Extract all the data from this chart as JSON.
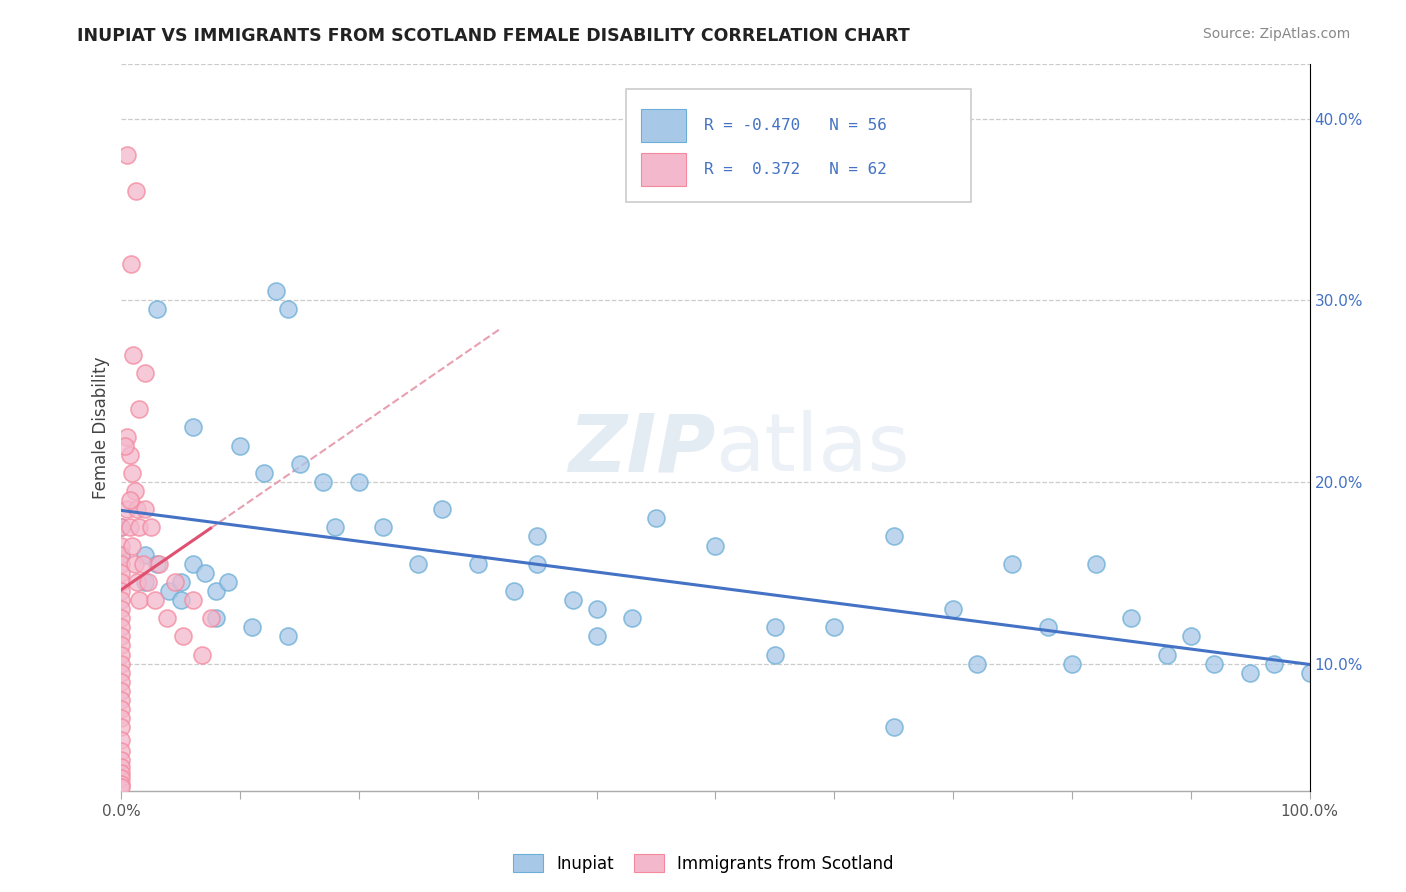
{
  "title": "INUPIAT VS IMMIGRANTS FROM SCOTLAND FEMALE DISABILITY CORRELATION CHART",
  "source": "Source: ZipAtlas.com",
  "ylabel": "Female Disability",
  "watermark": "ZIPatlas",
  "xlim": [
    0,
    1.0
  ],
  "ylim": [
    0.03,
    0.43
  ],
  "xtick_positions": [
    0.0,
    0.1,
    0.2,
    0.3,
    0.4,
    0.5,
    0.6,
    0.7,
    0.8,
    0.9,
    1.0
  ],
  "xticklabels_edge": {
    "0.0": "0.0%",
    "1.0": "100.0%"
  },
  "yticks": [
    0.1,
    0.2,
    0.3,
    0.4
  ],
  "yticklabels": [
    "10.0%",
    "20.0%",
    "30.0%",
    "40.0%"
  ],
  "legend_blue_R": "-0.470",
  "legend_blue_N": "56",
  "legend_pink_R": "0.372",
  "legend_pink_N": "62",
  "blue_color": "#a8c8e8",
  "pink_color": "#f4b8cc",
  "blue_edge_color": "#6baed6",
  "pink_edge_color": "#f4889e",
  "blue_line_color": "#4472c4",
  "pink_line_color": "#e05070",
  "pink_dash_color": "#e8a0b0",
  "inupiat_label": "Inupiat",
  "scotland_label": "Immigrants from Scotland",
  "blue_scatter_x": [
    0.0,
    0.0,
    0.02,
    0.03,
    0.04,
    0.05,
    0.06,
    0.07,
    0.08,
    0.09,
    0.1,
    0.12,
    0.13,
    0.14,
    0.15,
    0.17,
    0.18,
    0.2,
    0.22,
    0.25,
    0.27,
    0.3,
    0.33,
    0.35,
    0.38,
    0.4,
    0.43,
    0.45,
    0.5,
    0.55,
    0.6,
    0.65,
    0.7,
    0.72,
    0.75,
    0.78,
    0.8,
    0.82,
    0.85,
    0.88,
    0.9,
    0.92,
    0.95,
    0.97,
    1.0,
    0.02,
    0.05,
    0.08,
    0.11,
    0.14,
    0.03,
    0.06,
    0.35,
    0.4,
    0.55,
    0.65
  ],
  "blue_scatter_y": [
    0.175,
    0.16,
    0.16,
    0.155,
    0.14,
    0.145,
    0.155,
    0.15,
    0.14,
    0.145,
    0.22,
    0.205,
    0.305,
    0.295,
    0.21,
    0.2,
    0.175,
    0.2,
    0.175,
    0.155,
    0.185,
    0.155,
    0.14,
    0.17,
    0.135,
    0.13,
    0.125,
    0.18,
    0.165,
    0.12,
    0.12,
    0.17,
    0.13,
    0.1,
    0.155,
    0.12,
    0.1,
    0.155,
    0.125,
    0.105,
    0.115,
    0.1,
    0.095,
    0.1,
    0.095,
    0.145,
    0.135,
    0.125,
    0.12,
    0.115,
    0.295,
    0.23,
    0.155,
    0.115,
    0.105,
    0.065
  ],
  "pink_scatter_x": [
    0.0,
    0.0,
    0.0,
    0.0,
    0.0,
    0.0,
    0.0,
    0.0,
    0.0,
    0.0,
    0.0,
    0.0,
    0.0,
    0.0,
    0.0,
    0.0,
    0.0,
    0.0,
    0.0,
    0.0,
    0.0,
    0.0,
    0.0,
    0.0,
    0.0,
    0.0,
    0.0,
    0.0,
    0.0,
    0.0,
    0.005,
    0.005,
    0.007,
    0.007,
    0.009,
    0.009,
    0.011,
    0.011,
    0.013,
    0.013,
    0.015,
    0.015,
    0.018,
    0.02,
    0.022,
    0.025,
    0.028,
    0.032,
    0.038,
    0.045,
    0.052,
    0.06,
    0.068,
    0.075,
    0.015,
    0.02,
    0.008,
    0.012,
    0.005,
    0.01,
    0.003,
    0.007
  ],
  "pink_scatter_y": [
    0.175,
    0.165,
    0.16,
    0.155,
    0.15,
    0.145,
    0.14,
    0.135,
    0.13,
    0.125,
    0.12,
    0.115,
    0.11,
    0.105,
    0.1,
    0.095,
    0.09,
    0.085,
    0.08,
    0.075,
    0.07,
    0.065,
    0.058,
    0.052,
    0.047,
    0.043,
    0.04,
    0.037,
    0.034,
    0.032,
    0.185,
    0.225,
    0.175,
    0.215,
    0.165,
    0.205,
    0.155,
    0.195,
    0.145,
    0.185,
    0.135,
    0.175,
    0.155,
    0.185,
    0.145,
    0.175,
    0.135,
    0.155,
    0.125,
    0.145,
    0.115,
    0.135,
    0.105,
    0.125,
    0.24,
    0.26,
    0.32,
    0.36,
    0.38,
    0.27,
    0.22,
    0.19
  ]
}
